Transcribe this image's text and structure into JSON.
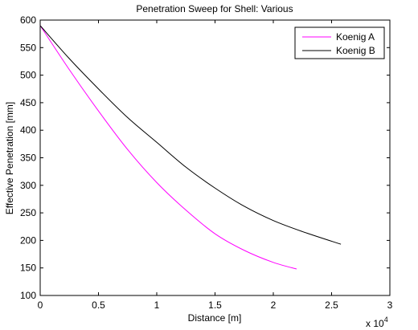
{
  "chart_data": {
    "type": "line",
    "title": "Penetration Sweep for Shell: Various",
    "xlabel": "Distance [m]",
    "ylabel": "Effective Penetration [mm]",
    "xlim": [
      0,
      30000
    ],
    "ylim": [
      100,
      600
    ],
    "x_ticks": [
      0,
      5000,
      10000,
      15000,
      20000,
      25000,
      30000
    ],
    "x_tick_labels": [
      "0",
      "0.5",
      "1",
      "1.5",
      "2",
      "2.5",
      "3"
    ],
    "x_exponent_label": "x 10",
    "x_exponent_power": "4",
    "y_ticks": [
      100,
      150,
      200,
      250,
      300,
      350,
      400,
      450,
      500,
      550,
      600
    ],
    "y_tick_labels": [
      "100",
      "150",
      "200",
      "250",
      "300",
      "350",
      "400",
      "450",
      "500",
      "550",
      "600"
    ],
    "grid": false,
    "legend_position": "top-right",
    "series": [
      {
        "name": "Koenig A",
        "color": "#ff00ff",
        "x": [
          0,
          2500,
          5000,
          7500,
          10000,
          12500,
          15000,
          17500,
          20000,
          22000
        ],
        "y": [
          590,
          510,
          435,
          365,
          305,
          255,
          212,
          182,
          160,
          148
        ]
      },
      {
        "name": "Koenig B",
        "color": "#000000",
        "x": [
          0,
          2500,
          5000,
          7500,
          10000,
          12500,
          15000,
          17500,
          20000,
          22500,
          25800
        ],
        "y": [
          590,
          530,
          475,
          423,
          378,
          333,
          295,
          262,
          236,
          216,
          193
        ]
      }
    ]
  }
}
